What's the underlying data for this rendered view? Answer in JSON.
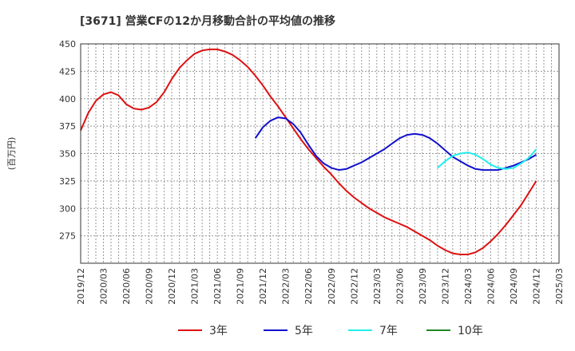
{
  "chart_data": {
    "type": "line",
    "title": "[3671]  営業CFの12か月移動合計の平均値の推移",
    "ylabel": "(百万円)",
    "xlabel": "",
    "grid": true,
    "legend_position": "bottom",
    "ylim": [
      250,
      450
    ],
    "yticks": [
      275,
      300,
      325,
      350,
      375,
      400,
      425,
      450
    ],
    "x_range": [
      "2019-12",
      "2025-03"
    ],
    "xticks": [
      "2019/12",
      "2020/03",
      "2020/06",
      "2020/09",
      "2020/12",
      "2021/03",
      "2021/06",
      "2021/09",
      "2021/12",
      "2022/03",
      "2022/06",
      "2022/09",
      "2022/12",
      "2023/03",
      "2023/06",
      "2023/09",
      "2023/12",
      "2024/03",
      "2024/06",
      "2024/09",
      "2024/12",
      "2025/03"
    ],
    "series": [
      {
        "name": "3年",
        "color": "#dd1111",
        "x": [
          "2019-12",
          "2020-01",
          "2020-02",
          "2020-03",
          "2020-04",
          "2020-05",
          "2020-06",
          "2020-07",
          "2020-08",
          "2020-09",
          "2020-10",
          "2020-11",
          "2020-12",
          "2021-01",
          "2021-02",
          "2021-03",
          "2021-04",
          "2021-05",
          "2021-06",
          "2021-07",
          "2021-08",
          "2021-09",
          "2021-10",
          "2021-11",
          "2021-12",
          "2022-01",
          "2022-02",
          "2022-03",
          "2022-04",
          "2022-05",
          "2022-06",
          "2022-07",
          "2022-08",
          "2022-09",
          "2022-10",
          "2022-11",
          "2022-12",
          "2023-01",
          "2023-02",
          "2023-03",
          "2023-04",
          "2023-05",
          "2023-06",
          "2023-07",
          "2023-08",
          "2023-09",
          "2023-10",
          "2023-11",
          "2023-12",
          "2024-01",
          "2024-02",
          "2024-03",
          "2024-04",
          "2024-05",
          "2024-06",
          "2024-07",
          "2024-08",
          "2024-09",
          "2024-10",
          "2024-11",
          "2024-12"
        ],
        "values": [
          371,
          387,
          398,
          404,
          406,
          403,
          395,
          391,
          390,
          392,
          397,
          406,
          418,
          428,
          435,
          441,
          444,
          445,
          445,
          443,
          440,
          435,
          429,
          421,
          412,
          402,
          393,
          383,
          373,
          363,
          354,
          346,
          338,
          331,
          323,
          316,
          310,
          305,
          300,
          296,
          292,
          289,
          286,
          283,
          279,
          275,
          271,
          266,
          262,
          259,
          258,
          258,
          260,
          264,
          270,
          277,
          285,
          294,
          303,
          314,
          325
        ]
      },
      {
        "name": "5年",
        "color": "#1111cc",
        "x": [
          "2021-11",
          "2021-12",
          "2022-01",
          "2022-02",
          "2022-03",
          "2022-04",
          "2022-05",
          "2022-06",
          "2022-07",
          "2022-08",
          "2022-09",
          "2022-10",
          "2022-11",
          "2022-12",
          "2023-01",
          "2023-02",
          "2023-03",
          "2023-04",
          "2023-05",
          "2023-06",
          "2023-07",
          "2023-08",
          "2023-09",
          "2023-10",
          "2023-11",
          "2023-12",
          "2024-01",
          "2024-02",
          "2024-03",
          "2024-04",
          "2024-05",
          "2024-06",
          "2024-07",
          "2024-08",
          "2024-09",
          "2024-10",
          "2024-11",
          "2024-12"
        ],
        "values": [
          364,
          374,
          380,
          383,
          382,
          377,
          369,
          358,
          348,
          341,
          337,
          335,
          336,
          339,
          342,
          346,
          350,
          354,
          359,
          364,
          367,
          368,
          367,
          364,
          359,
          353,
          347,
          343,
          339,
          336,
          335,
          335,
          335,
          337,
          339,
          342,
          345,
          349
        ]
      },
      {
        "name": "7年",
        "color": "#22eeee",
        "x": [
          "2023-11",
          "2023-12",
          "2024-01",
          "2024-02",
          "2024-03",
          "2024-04",
          "2024-05",
          "2024-06",
          "2024-07",
          "2024-08",
          "2024-09",
          "2024-10",
          "2024-11",
          "2024-12"
        ],
        "values": [
          337,
          343,
          348,
          350,
          351,
          349,
          345,
          340,
          337,
          336,
          337,
          341,
          346,
          354
        ]
      },
      {
        "name": "10年",
        "color": "#228822",
        "x": [],
        "values": []
      }
    ]
  }
}
